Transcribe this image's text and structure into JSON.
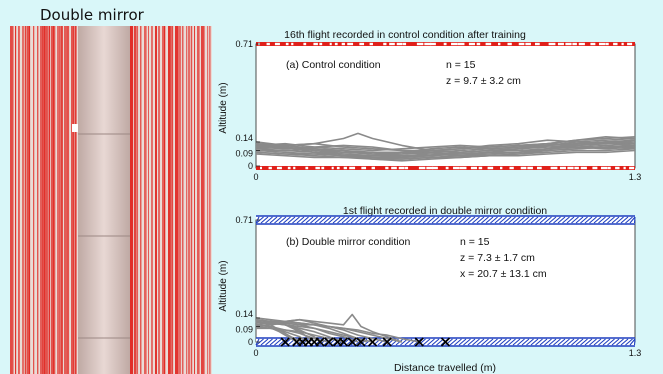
{
  "photo_title": "Double mirror",
  "colors": {
    "background": "#d9f7f9",
    "control_wall": "#e0201a",
    "mirror_wall": "#1e3fbf",
    "trajectory": "#8a8a8a",
    "collision_marker": "#000000"
  },
  "shared": {
    "ylabel": "Altitude (m)",
    "xlabel": "Distance travelled (m)"
  },
  "chart_data": [
    {
      "type": "line",
      "title": "16th flight recorded in control condition after training",
      "panel_label": "(a) Control condition",
      "stats": [
        "n = 15",
        "z = 9.7 ± 3.2 cm"
      ],
      "xlim": [
        0,
        1.3
      ],
      "ylim": [
        0,
        0.71
      ],
      "x_ticks": [
        "0",
        "1.3"
      ],
      "y_ticks": [
        {
          "value": 0.71,
          "label": "0.71"
        },
        {
          "value": 0.14,
          "label": "0.14"
        },
        {
          "value": 0.09,
          "label": "0.09"
        },
        {
          "value": 0,
          "label": "0"
        }
      ],
      "series": [
        {
          "x": [
            0,
            0.1,
            0.2,
            0.3,
            0.4,
            0.5,
            0.6,
            0.7,
            0.8,
            0.9,
            1.0,
            1.1,
            1.2,
            1.3
          ],
          "y": [
            0.12,
            0.11,
            0.09,
            0.08,
            0.08,
            0.07,
            0.08,
            0.09,
            0.1,
            0.11,
            0.12,
            0.13,
            0.14,
            0.13
          ]
        },
        {
          "x": [
            0,
            0.1,
            0.2,
            0.3,
            0.4,
            0.5,
            0.6,
            0.7,
            0.8,
            0.9,
            1.0,
            1.1,
            1.2,
            1.3
          ],
          "y": [
            0.1,
            0.09,
            0.08,
            0.07,
            0.06,
            0.06,
            0.07,
            0.08,
            0.09,
            0.1,
            0.12,
            0.14,
            0.15,
            0.16
          ]
        },
        {
          "x": [
            0,
            0.1,
            0.2,
            0.3,
            0.4,
            0.5,
            0.6,
            0.7,
            0.8,
            0.9,
            1.0,
            1.1,
            1.2,
            1.3
          ],
          "y": [
            0.14,
            0.12,
            0.1,
            0.09,
            0.07,
            0.06,
            0.06,
            0.07,
            0.07,
            0.08,
            0.1,
            0.11,
            0.12,
            0.11
          ]
        },
        {
          "x": [
            0,
            0.1,
            0.2,
            0.3,
            0.4,
            0.5,
            0.6,
            0.7,
            0.8,
            0.9,
            1.0,
            1.1,
            1.2,
            1.3
          ],
          "y": [
            0.08,
            0.07,
            0.06,
            0.05,
            0.05,
            0.04,
            0.05,
            0.06,
            0.06,
            0.07,
            0.08,
            0.09,
            0.09,
            0.1
          ]
        },
        {
          "x": [
            0,
            0.1,
            0.2,
            0.3,
            0.4,
            0.5,
            0.6,
            0.7,
            0.8,
            0.9,
            1.0,
            1.1,
            1.2,
            1.3
          ],
          "y": [
            0.12,
            0.13,
            0.11,
            0.1,
            0.09,
            0.1,
            0.11,
            0.12,
            0.11,
            0.12,
            0.13,
            0.15,
            0.16,
            0.17
          ]
        },
        {
          "x": [
            0,
            0.1,
            0.2,
            0.3,
            0.4,
            0.5,
            0.6,
            0.7,
            0.8,
            0.9,
            1.0,
            1.1,
            1.2,
            1.3
          ],
          "y": [
            0.09,
            0.08,
            0.07,
            0.06,
            0.04,
            0.03,
            0.04,
            0.05,
            0.06,
            0.07,
            0.09,
            0.1,
            0.11,
            0.12
          ]
        },
        {
          "x": [
            0,
            0.1,
            0.2,
            0.3,
            0.35,
            0.4,
            0.5,
            0.6,
            0.7,
            0.8,
            0.9,
            1.0,
            1.1,
            1.2,
            1.3
          ],
          "y": [
            0.13,
            0.12,
            0.13,
            0.16,
            0.19,
            0.16,
            0.12,
            0.09,
            0.08,
            0.09,
            0.1,
            0.11,
            0.12,
            0.13,
            0.14
          ]
        },
        {
          "x": [
            0,
            0.1,
            0.2,
            0.3,
            0.4,
            0.5,
            0.6,
            0.7,
            0.8,
            0.9,
            1.0,
            1.1,
            1.2,
            1.3
          ],
          "y": [
            0.07,
            0.06,
            0.05,
            0.05,
            0.04,
            0.04,
            0.05,
            0.05,
            0.06,
            0.06,
            0.07,
            0.08,
            0.08,
            0.09
          ]
        },
        {
          "x": [
            0,
            0.1,
            0.2,
            0.3,
            0.4,
            0.5,
            0.6,
            0.7,
            0.8,
            0.9,
            1.0,
            1.1,
            1.2,
            1.3
          ],
          "y": [
            0.11,
            0.1,
            0.11,
            0.12,
            0.11,
            0.09,
            0.08,
            0.07,
            0.08,
            0.1,
            0.12,
            0.13,
            0.14,
            0.12
          ]
        },
        {
          "x": [
            0,
            0.1,
            0.2,
            0.3,
            0.4,
            0.5,
            0.6,
            0.7,
            0.8,
            0.9,
            1.0,
            1.1,
            1.2,
            1.3
          ],
          "y": [
            0.1,
            0.11,
            0.09,
            0.07,
            0.06,
            0.07,
            0.09,
            0.1,
            0.12,
            0.13,
            0.15,
            0.14,
            0.13,
            0.15
          ]
        },
        {
          "x": [
            0,
            0.1,
            0.2,
            0.3,
            0.4,
            0.5,
            0.6,
            0.7,
            0.8,
            0.9,
            1.0,
            1.1,
            1.2,
            1.3
          ],
          "y": [
            0.13,
            0.11,
            0.08,
            0.06,
            0.05,
            0.05,
            0.06,
            0.08,
            0.09,
            0.09,
            0.1,
            0.12,
            0.13,
            0.12
          ]
        },
        {
          "x": [
            0,
            0.1,
            0.2,
            0.3,
            0.4,
            0.5,
            0.6,
            0.7,
            0.8,
            0.9,
            1.0,
            1.1,
            1.2,
            1.3
          ],
          "y": [
            0.09,
            0.09,
            0.1,
            0.09,
            0.08,
            0.08,
            0.07,
            0.06,
            0.07,
            0.08,
            0.1,
            0.11,
            0.1,
            0.11
          ]
        },
        {
          "x": [
            0,
            0.1,
            0.2,
            0.3,
            0.4,
            0.5,
            0.6,
            0.7,
            0.8,
            0.9,
            1.0,
            1.1,
            1.2,
            1.3
          ],
          "y": [
            0.12,
            0.12,
            0.1,
            0.08,
            0.07,
            0.08,
            0.1,
            0.11,
            0.1,
            0.11,
            0.13,
            0.15,
            0.17,
            0.16
          ]
        },
        {
          "x": [
            0,
            0.1,
            0.2,
            0.3,
            0.4,
            0.5,
            0.6,
            0.7,
            0.8,
            0.9,
            1.0,
            1.1,
            1.2,
            1.3
          ],
          "y": [
            0.08,
            0.07,
            0.07,
            0.06,
            0.06,
            0.05,
            0.06,
            0.07,
            0.08,
            0.08,
            0.09,
            0.1,
            0.11,
            0.1
          ]
        },
        {
          "x": [
            0,
            0.1,
            0.2,
            0.3,
            0.4,
            0.5,
            0.6,
            0.7,
            0.8,
            0.9,
            1.0,
            1.1,
            1.2,
            1.3
          ],
          "y": [
            0.11,
            0.12,
            0.13,
            0.11,
            0.1,
            0.09,
            0.09,
            0.1,
            0.11,
            0.12,
            0.13,
            0.12,
            0.14,
            0.15
          ]
        }
      ]
    },
    {
      "type": "line",
      "title": "1st flight recorded in double mirror condition",
      "panel_label": "(b) Double mirror condition",
      "stats": [
        "n = 15",
        "z = 7.3 ± 1.7 cm",
        "x = 20.7 ± 13.1 cm"
      ],
      "xlim": [
        0,
        1.3
      ],
      "ylim": [
        0,
        0.71
      ],
      "x_ticks": [
        "0",
        "1.3"
      ],
      "y_ticks": [
        {
          "value": 0.71,
          "label": "0.71"
        },
        {
          "value": 0.14,
          "label": "0.14"
        },
        {
          "value": 0.09,
          "label": "0.09"
        },
        {
          "value": 0,
          "label": "0"
        }
      ],
      "series": [
        {
          "x": [
            0,
            0.05,
            0.1,
            0.15,
            0.2,
            0.25,
            0.3
          ],
          "y": [
            0.12,
            0.11,
            0.1,
            0.08,
            0.06,
            0.03,
            0.0
          ]
        },
        {
          "x": [
            0,
            0.05,
            0.1,
            0.15,
            0.2,
            0.25
          ],
          "y": [
            0.1,
            0.09,
            0.07,
            0.05,
            0.02,
            0.0
          ]
        },
        {
          "x": [
            0,
            0.05,
            0.1,
            0.15,
            0.2
          ],
          "y": [
            0.13,
            0.12,
            0.1,
            0.06,
            0.0
          ]
        },
        {
          "x": [
            0,
            0.05,
            0.1,
            0.15,
            0.18
          ],
          "y": [
            0.09,
            0.08,
            0.06,
            0.03,
            0.0
          ]
        },
        {
          "x": [
            0,
            0.05,
            0.1,
            0.15,
            0.2,
            0.22
          ],
          "y": [
            0.11,
            0.12,
            0.1,
            0.07,
            0.03,
            0.0
          ]
        },
        {
          "x": [
            0,
            0.05,
            0.08,
            0.12,
            0.16
          ],
          "y": [
            0.12,
            0.1,
            0.07,
            0.03,
            0.0
          ]
        },
        {
          "x": [
            0,
            0.04,
            0.08,
            0.11,
            0.14
          ],
          "y": [
            0.1,
            0.09,
            0.06,
            0.03,
            0.0
          ]
        },
        {
          "x": [
            0,
            0.05,
            0.1,
            0.15,
            0.2,
            0.25,
            0.3,
            0.35,
            0.4
          ],
          "y": [
            0.14,
            0.13,
            0.12,
            0.11,
            0.1,
            0.08,
            0.05,
            0.02,
            0.0
          ]
        },
        {
          "x": [
            0,
            0.05,
            0.1,
            0.15,
            0.2,
            0.25,
            0.3,
            0.35,
            0.4,
            0.45
          ],
          "y": [
            0.12,
            0.11,
            0.12,
            0.13,
            0.11,
            0.09,
            0.07,
            0.04,
            0.02,
            0.0
          ]
        },
        {
          "x": [
            0,
            0.05,
            0.1,
            0.15,
            0.2,
            0.25,
            0.3,
            0.35,
            0.4,
            0.45,
            0.5
          ],
          "y": [
            0.13,
            0.12,
            0.11,
            0.1,
            0.1,
            0.09,
            0.08,
            0.06,
            0.04,
            0.02,
            0.0
          ]
        },
        {
          "x": [
            0,
            0.05,
            0.1,
            0.15,
            0.2,
            0.25,
            0.3,
            0.35,
            0.4,
            0.45,
            0.5,
            0.56
          ],
          "y": [
            0.11,
            0.12,
            0.12,
            0.11,
            0.1,
            0.09,
            0.08,
            0.07,
            0.05,
            0.04,
            0.02,
            0.0
          ]
        },
        {
          "x": [
            0,
            0.05,
            0.1,
            0.15,
            0.2,
            0.25,
            0.3,
            0.33,
            0.36,
            0.4,
            0.45,
            0.5
          ],
          "y": [
            0.12,
            0.11,
            0.12,
            0.13,
            0.12,
            0.11,
            0.1,
            0.16,
            0.09,
            0.06,
            0.03,
            0.0
          ]
        },
        {
          "x": [
            0,
            0.05,
            0.1,
            0.15,
            0.2,
            0.25,
            0.3
          ],
          "y": [
            0.08,
            0.08,
            0.07,
            0.06,
            0.04,
            0.02,
            0.0
          ]
        },
        {
          "x": [
            0,
            0.05,
            0.1,
            0.15,
            0.2,
            0.25,
            0.3,
            0.35,
            0.38
          ],
          "y": [
            0.1,
            0.11,
            0.1,
            0.09,
            0.08,
            0.06,
            0.04,
            0.02,
            0.0
          ]
        },
        {
          "x": [
            0,
            0.05,
            0.1,
            0.15,
            0.2,
            0.25,
            0.3,
            0.35
          ],
          "y": [
            0.09,
            0.1,
            0.11,
            0.1,
            0.08,
            0.05,
            0.03,
            0.0
          ]
        }
      ],
      "collisions": {
        "x": [
          0.1,
          0.14,
          0.16,
          0.18,
          0.2,
          0.22,
          0.25,
          0.28,
          0.3,
          0.33,
          0.36,
          0.4,
          0.45,
          0.56,
          0.65
        ],
        "y": [
          0,
          0,
          0,
          0,
          0,
          0,
          0,
          0,
          0,
          0,
          0,
          0,
          0,
          0,
          0
        ]
      }
    }
  ]
}
